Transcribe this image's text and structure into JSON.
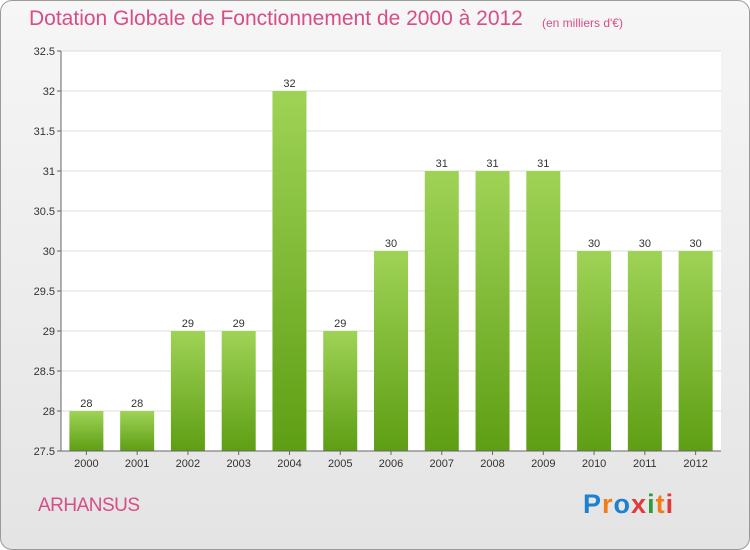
{
  "header": {
    "title": "Dotation Globale de Fonctionnement de 2000 à 2012",
    "subtitle": "(en milliers d'€)"
  },
  "footer": {
    "commune": "ARHANSUS",
    "logo_text": "Proxiti"
  },
  "colors": {
    "title": "#d64d87",
    "bar_top": "#9fd356",
    "bar_bottom": "#5e9e14",
    "plot_bg": "#ffffff"
  },
  "chart_data": {
    "type": "bar",
    "categories": [
      "2000",
      "2001",
      "2002",
      "2003",
      "2004",
      "2005",
      "2006",
      "2007",
      "2008",
      "2009",
      "2010",
      "2011",
      "2012"
    ],
    "values": [
      28,
      28,
      29,
      29,
      32,
      29,
      30,
      31,
      31,
      31,
      30,
      30,
      30
    ],
    "data_labels": [
      "28",
      "28",
      "29",
      "29",
      "32",
      "29",
      "30",
      "31",
      "31",
      "31",
      "30",
      "30",
      "30"
    ],
    "ylim": [
      27.5,
      32.5
    ],
    "yticks": [
      "27.5",
      "28",
      "28.5",
      "29",
      "29.5",
      "30",
      "30.5",
      "31",
      "31.5",
      "32",
      "32.5"
    ],
    "grid": true,
    "legend": "none"
  }
}
